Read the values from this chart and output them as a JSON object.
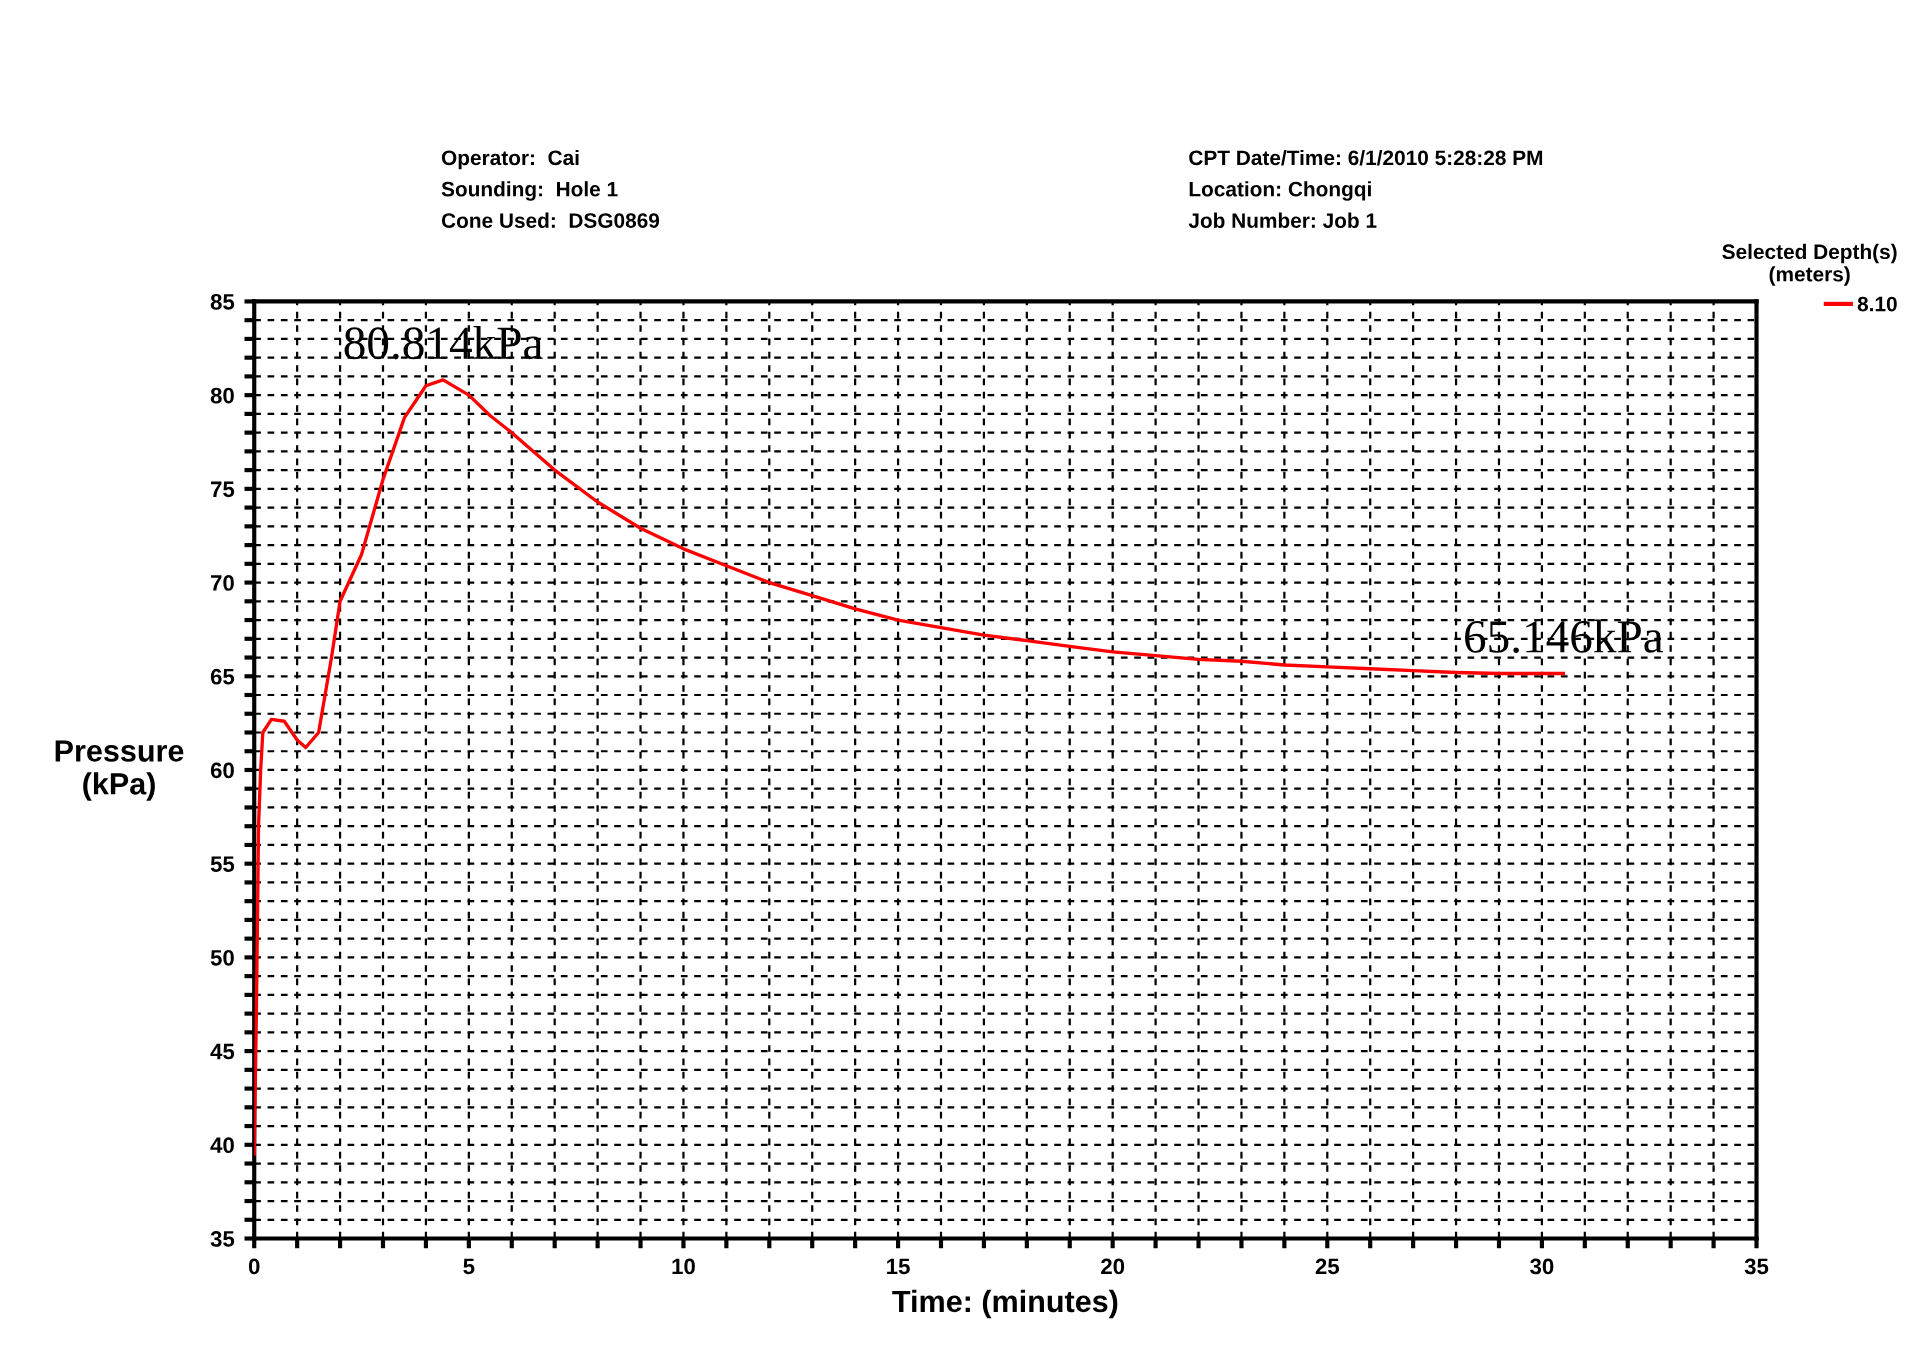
{
  "chart_data": {
    "type": "line",
    "xlabel": "Time: (minutes)",
    "ylabel": "Pressure\n(kPa)",
    "legend_title": "Selected Depth(s)\n(meters)",
    "annotations": [
      "Operator:  Cai",
      "Sounding:  Hole 1",
      "Cone Used:  DSG0869",
      "CPT Date/Time: 6/1/2010 5:28:28 PM",
      "Location: Chongqi",
      "Job Number: Job 1",
      {
        "text": "80.814kPa",
        "x": 4.4,
        "y": 80.814
      },
      {
        "text": "65.146kPa",
        "x": 30.5,
        "y": 65.146
      }
    ],
    "series": [
      {
        "name": "8.10",
        "color": "#ff0000",
        "x": [
          0.0,
          0.05,
          0.1,
          0.15,
          0.2,
          0.4,
          0.7,
          1.0,
          1.2,
          1.5,
          1.8,
          2.0,
          2.5,
          3.0,
          3.5,
          4.0,
          4.4,
          5.0,
          5.5,
          6,
          7,
          8,
          9,
          10,
          11,
          12,
          13,
          14,
          15,
          16,
          17,
          18,
          19,
          20,
          21,
          22,
          23,
          24,
          25,
          26,
          27,
          28,
          29,
          30,
          30.5
        ],
        "values": [
          39.5,
          47,
          57,
          60,
          62,
          62.7,
          62.6,
          61.6,
          61.2,
          62,
          66,
          69,
          71.5,
          75.5,
          78.8,
          80.5,
          80.814,
          80,
          78.9,
          78,
          76,
          74.3,
          72.9,
          71.8,
          70.9,
          70,
          69.3,
          68.6,
          68,
          67.6,
          67.2,
          66.9,
          66.6,
          66.3,
          66.1,
          65.9,
          65.8,
          65.6,
          65.5,
          65.4,
          65.3,
          65.2,
          65.15,
          65.15,
          65.146
        ]
      }
    ],
    "xlim": [
      0,
      35
    ],
    "ylim": [
      35,
      85
    ],
    "xticks": [
      0,
      {
        "value": 1,
        "label": null
      },
      {
        "value": 2,
        "label": null
      },
      {
        "value": 3,
        "label": null
      },
      {
        "value": 4,
        "label": null
      },
      5,
      {
        "value": 6,
        "label": null
      },
      {
        "value": 7,
        "label": null
      },
      {
        "value": 8,
        "label": null
      },
      {
        "value": 9,
        "label": null
      },
      10,
      {
        "value": 11,
        "label": null
      },
      {
        "value": 12,
        "label": null
      },
      {
        "value": 13,
        "label": null
      },
      {
        "value": 14,
        "label": null
      },
      15,
      {
        "value": 16,
        "label": null
      },
      {
        "value": 17,
        "label": null
      },
      {
        "value": 18,
        "label": null
      },
      {
        "value": 19,
        "label": null
      },
      20,
      {
        "value": 21,
        "label": null
      },
      {
        "value": 22,
        "label": null
      },
      {
        "value": 23,
        "label": null
      },
      {
        "value": 24,
        "label": null
      },
      25,
      {
        "value": 26,
        "label": null
      },
      {
        "value": 27,
        "label": null
      },
      {
        "value": 28,
        "label": null
      },
      {
        "value": 29,
        "label": null
      },
      30,
      {
        "value": 31,
        "label": null
      },
      {
        "value": 32,
        "label": null
      },
      {
        "value": 33,
        "label": null
      },
      {
        "value": 34,
        "label": null
      },
      35
    ],
    "yticks": [
      35,
      {
        "value": 36,
        "label": null
      },
      {
        "value": 37,
        "label": null
      },
      {
        "value": 38,
        "label": null
      },
      {
        "value": 39,
        "label": null
      },
      40,
      {
        "value": 41,
        "label": null
      },
      {
        "value": 42,
        "label": null
      },
      {
        "value": 43,
        "label": null
      },
      {
        "value": 44,
        "label": null
      },
      45,
      {
        "value": 46,
        "label": null
      },
      {
        "value": 47,
        "label": null
      },
      {
        "value": 48,
        "label": null
      },
      {
        "value": 49,
        "label": null
      },
      50,
      {
        "value": 51,
        "label": null
      },
      {
        "value": 52,
        "label": null
      },
      {
        "value": 53,
        "label": null
      },
      {
        "value": 54,
        "label": null
      },
      55,
      {
        "value": 56,
        "label": null
      },
      {
        "value": 57,
        "label": null
      },
      {
        "value": 58,
        "label": null
      },
      {
        "value": 59,
        "label": null
      },
      60,
      {
        "value": 61,
        "label": null
      },
      {
        "value": 62,
        "label": null
      },
      {
        "value": 63,
        "label": null
      },
      {
        "value": 64,
        "label": null
      },
      65,
      {
        "value": 66,
        "label": null
      },
      {
        "value": 67,
        "label": null
      },
      {
        "value": 68,
        "label": null
      },
      {
        "value": 69,
        "label": null
      },
      70,
      {
        "value": 71,
        "label": null
      },
      {
        "value": 72,
        "label": null
      },
      {
        "value": 73,
        "label": null
      },
      {
        "value": 74,
        "label": null
      },
      75,
      {
        "value": 76,
        "label": null
      },
      {
        "value": 77,
        "label": null
      },
      {
        "value": 78,
        "label": null
      },
      {
        "value": 79,
        "label": null
      },
      80,
      {
        "value": 81,
        "label": null
      },
      {
        "value": 82,
        "label": null
      },
      {
        "value": 83,
        "label": null
      },
      {
        "value": 84,
        "label": null
      },
      85
    ],
    "grid": true,
    "legend": "top right",
    "line_style": "solid",
    "marker": "none"
  }
}
